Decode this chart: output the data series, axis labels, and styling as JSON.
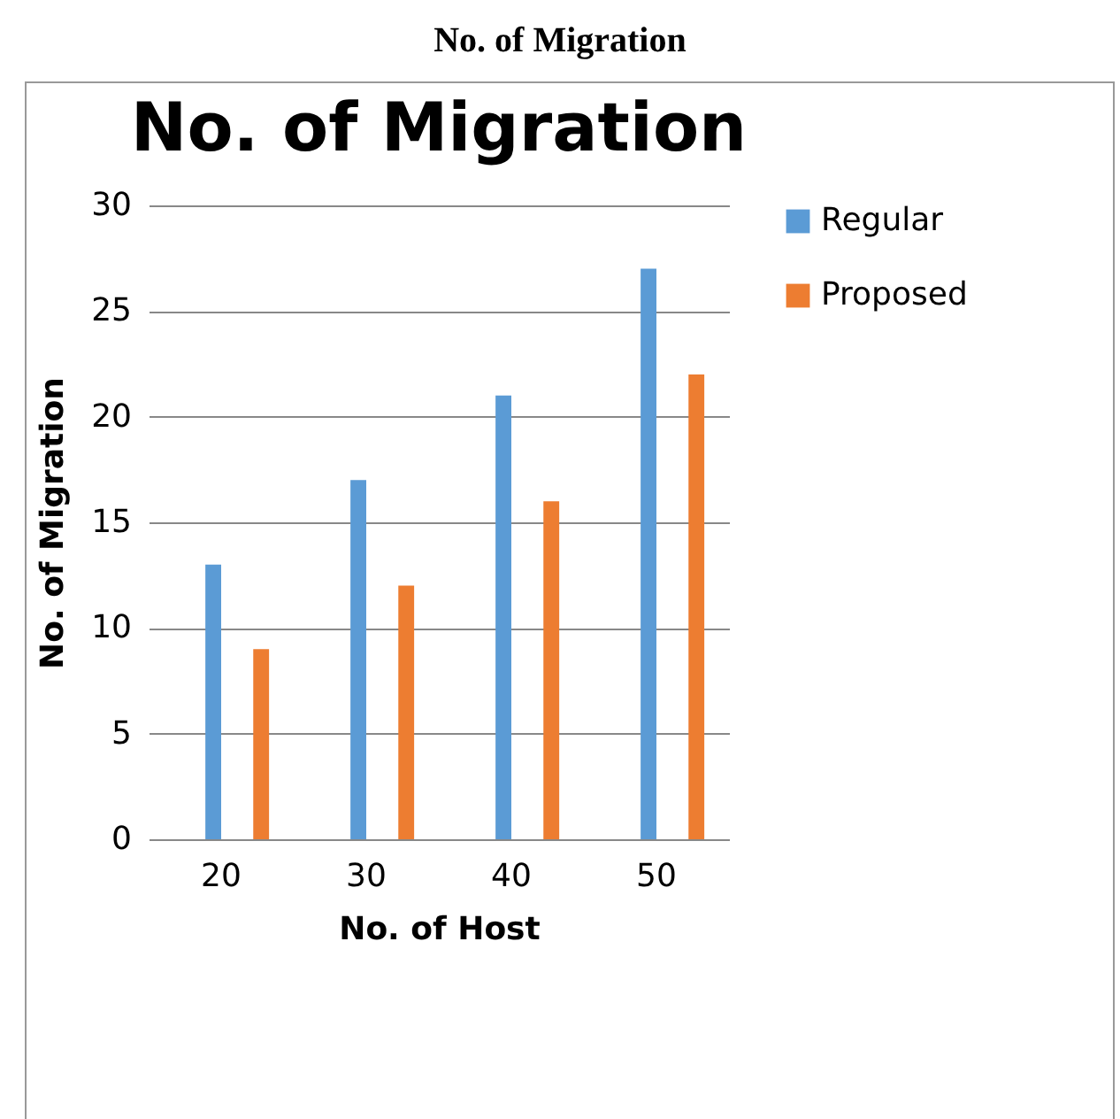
{
  "chart_data": {
    "type": "bar",
    "title": "No. of Migration",
    "xlabel": "No. of Host",
    "ylabel": "No. of Migration",
    "annotations": [
      "No. of Migration"
    ],
    "categories": [
      "20",
      "30",
      "40",
      "50"
    ],
    "series": [
      {
        "name": "Regular",
        "color": "#5b9bd5",
        "values": [
          13,
          17,
          21,
          27
        ]
      },
      {
        "name": "Proposed",
        "color": "#ed7d31",
        "values": [
          9,
          12,
          16,
          22
        ]
      }
    ],
    "ylim": [
      0,
      30
    ],
    "yticks": [
      0,
      5,
      10,
      15,
      20,
      25,
      30
    ],
    "grid": "y",
    "legend": "right"
  }
}
